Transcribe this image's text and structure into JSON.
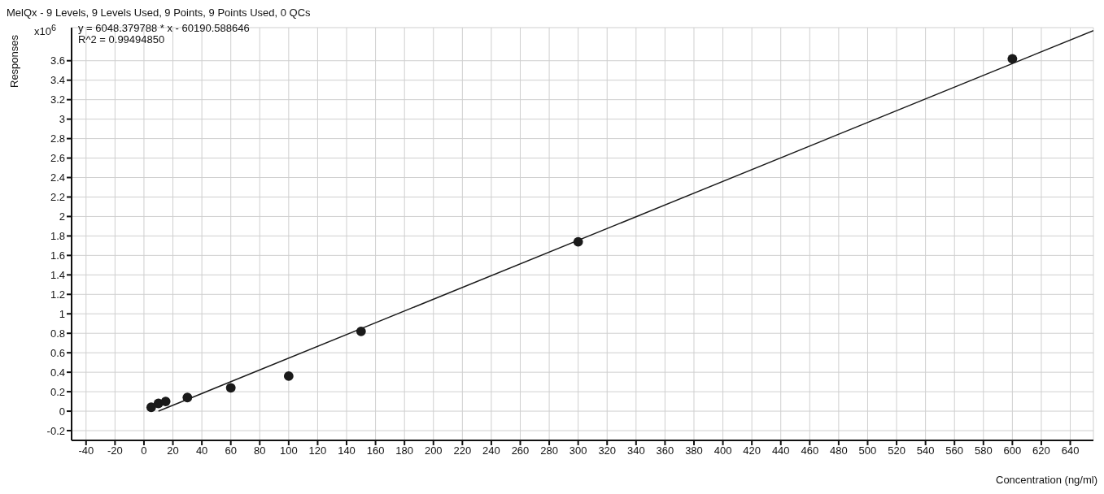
{
  "chart_data": {
    "type": "scatter",
    "title": "MelQx - 9 Levels, 9 Levels Used, 9 Points, 9 Points Used, 0 QCs",
    "xlabel": "Concentration (ng/ml)",
    "ylabel": "Responses",
    "annotations": [
      "y = 6048.379788 * x  - 60190.588646",
      "R^2 = 0.99494850",
      "x10$^{6}$"
    ],
    "series": [
      {
        "marker": "circle",
        "color": "#1a1a1a",
        "x": [
          5,
          10,
          15,
          30,
          60,
          100,
          150,
          300,
          600
        ],
        "values": [
          0.04,
          0.08,
          0.1,
          0.14,
          0.24,
          0.36,
          0.82,
          1.74,
          3.62
        ]
      },
      {
        "type": "line",
        "color": "#1a1a1a",
        "x": [
          10,
          656
        ],
        "values": [
          0,
          3.91
        ]
      }
    ],
    "xlim": [
      -50,
      656
    ],
    "xticks": [
      -40,
      -20,
      0,
      20,
      40,
      60,
      80,
      100,
      120,
      140,
      160,
      180,
      200,
      220,
      240,
      260,
      280,
      300,
      320,
      340,
      360,
      380,
      400,
      420,
      440,
      460,
      480,
      500,
      520,
      540,
      560,
      580,
      600,
      620,
      640
    ],
    "ylim": [
      -0.3,
      3.94
    ],
    "yticks": [
      -0.2,
      0,
      0.2,
      0.4,
      0.6,
      0.8,
      1,
      1.2,
      1.4,
      1.6,
      1.8,
      2,
      2.2,
      2.4,
      2.6,
      2.8,
      3,
      3.2,
      3.4,
      3.6
    ],
    "grid": true,
    "line_style": "solid"
  }
}
